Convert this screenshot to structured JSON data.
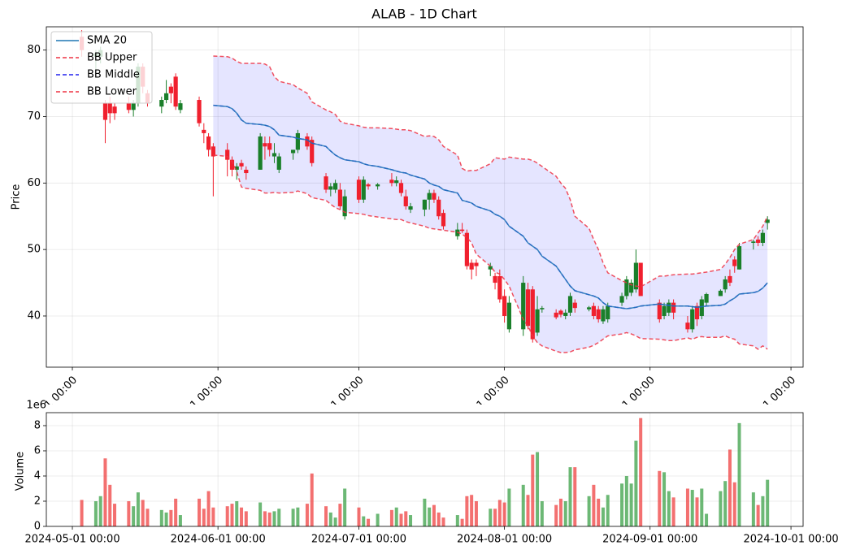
{
  "chart_data": [
    {
      "type": "candlestick",
      "title": "ALAB - 1D Chart",
      "y_label": "Price",
      "x": [
        "2024-05-03",
        "2024-05-06",
        "2024-05-07",
        "2024-05-08",
        "2024-05-09",
        "2024-05-10",
        "2024-05-13",
        "2024-05-14",
        "2024-05-15",
        "2024-05-16",
        "2024-05-17",
        "2024-05-20",
        "2024-05-21",
        "2024-05-22",
        "2024-05-23",
        "2024-05-24",
        "2024-05-28",
        "2024-05-29",
        "2024-05-30",
        "2024-05-31",
        "2024-06-03",
        "2024-06-04",
        "2024-06-05",
        "2024-06-06",
        "2024-06-07",
        "2024-06-10",
        "2024-06-11",
        "2024-06-12",
        "2024-06-13",
        "2024-06-14",
        "2024-06-17",
        "2024-06-18",
        "2024-06-20",
        "2024-06-21",
        "2024-06-24",
        "2024-06-25",
        "2024-06-26",
        "2024-06-27",
        "2024-06-28",
        "2024-07-01",
        "2024-07-02",
        "2024-07-03",
        "2024-07-05",
        "2024-07-08",
        "2024-07-09",
        "2024-07-10",
        "2024-07-11",
        "2024-07-12",
        "2024-07-15",
        "2024-07-16",
        "2024-07-17",
        "2024-07-18",
        "2024-07-19",
        "2024-07-22",
        "2024-07-23",
        "2024-07-24",
        "2024-07-25",
        "2024-07-26",
        "2024-07-29",
        "2024-07-30",
        "2024-07-31",
        "2024-08-01",
        "2024-08-02",
        "2024-08-05",
        "2024-08-06",
        "2024-08-07",
        "2024-08-08",
        "2024-08-09",
        "2024-08-12",
        "2024-08-13",
        "2024-08-14",
        "2024-08-15",
        "2024-08-16",
        "2024-08-19",
        "2024-08-20",
        "2024-08-21",
        "2024-08-22",
        "2024-08-23",
        "2024-08-26",
        "2024-08-27",
        "2024-08-28",
        "2024-08-29",
        "2024-08-30",
        "2024-09-03",
        "2024-09-04",
        "2024-09-05",
        "2024-09-06",
        "2024-09-09",
        "2024-09-10",
        "2024-09-11",
        "2024-09-12",
        "2024-09-13",
        "2024-09-16",
        "2024-09-17",
        "2024-09-18",
        "2024-09-19",
        "2024-09-20",
        "2024-09-23",
        "2024-09-24",
        "2024-09-25",
        "2024-09-26"
      ],
      "open": [
        82,
        79,
        79,
        72,
        72,
        71.5,
        72,
        71,
        72,
        77.5,
        73.5,
        71.5,
        72.5,
        74.5,
        76,
        71,
        72.5,
        68,
        67,
        65.5,
        65,
        63.5,
        62,
        63,
        62,
        62,
        66,
        66,
        64,
        62,
        64.5,
        65,
        67,
        66.5,
        61,
        59,
        59,
        59,
        55,
        60.5,
        57.5,
        59.8,
        59.5,
        60.5,
        60,
        60,
        58,
        56,
        56,
        57.5,
        58.5,
        57.5,
        55.5,
        52,
        53,
        52.5,
        48,
        48,
        47,
        46,
        46,
        43,
        38,
        38,
        44,
        44,
        37.5,
        41,
        40.5,
        40.8,
        40,
        40.5,
        42,
        41,
        41.5,
        41,
        39.2,
        39.5,
        42,
        43,
        43.5,
        44,
        48,
        42,
        40,
        40.5,
        42,
        39,
        38,
        41.5,
        40,
        42,
        43,
        44,
        46,
        48.5,
        47,
        51,
        51.5,
        51,
        54
      ],
      "high": [
        83,
        80,
        80.5,
        72.5,
        73,
        72,
        73,
        72.5,
        78,
        78,
        74,
        73,
        75.5,
        75,
        76.5,
        72.5,
        73,
        69,
        67.5,
        66,
        66,
        64,
        63,
        63.5,
        62.5,
        67.5,
        67,
        67,
        66,
        64.5,
        65,
        68,
        67.5,
        67,
        61.5,
        60,
        60.5,
        60,
        59,
        61,
        61,
        60,
        60,
        61.5,
        61,
        60.5,
        59,
        57,
        57.5,
        59,
        59,
        58,
        56,
        54,
        54,
        53,
        48.5,
        48.5,
        48,
        46.5,
        47,
        44,
        43,
        46,
        45,
        44.5,
        43,
        41.5,
        41,
        41,
        41,
        43.5,
        42.5,
        41.5,
        42,
        41.5,
        41.5,
        42,
        43.5,
        46,
        45.5,
        50,
        48,
        42.5,
        42,
        42.5,
        42.5,
        40,
        41.5,
        42,
        43,
        43.5,
        44,
        46,
        47,
        49,
        51,
        51.5,
        52,
        53,
        55
      ],
      "low": [
        79,
        77,
        78,
        66,
        69,
        69.5,
        70.5,
        70,
        71.5,
        73.5,
        71.5,
        70.5,
        72,
        72,
        71,
        70.5,
        68.5,
        66,
        64,
        58,
        61,
        61,
        60.5,
        62,
        60.5,
        62,
        63.5,
        64,
        63,
        61.5,
        63.5,
        64.5,
        65,
        62.5,
        58.5,
        58,
        58.5,
        56,
        54.5,
        57,
        57,
        59,
        59,
        59.5,
        59.5,
        58,
        56,
        55.5,
        55,
        56,
        57,
        54.5,
        53,
        51.5,
        52.5,
        47,
        45.5,
        46,
        46,
        44,
        42,
        39,
        37.5,
        37,
        38,
        36,
        37,
        40.5,
        39.5,
        39.8,
        39.5,
        40,
        40.5,
        40.7,
        39.5,
        39,
        38.8,
        39,
        41.5,
        42.5,
        43,
        43.5,
        43,
        39,
        39.5,
        40,
        39.5,
        37.5,
        37.5,
        38.5,
        39.5,
        41.5,
        43,
        43.5,
        44.5,
        46.5,
        47,
        50,
        50.5,
        50.5,
        53
      ],
      "close": [
        80,
        79.5,
        80,
        69.5,
        70.5,
        70.5,
        71,
        72,
        77.5,
        74.5,
        72,
        72.5,
        73.5,
        73.5,
        71.5,
        72,
        69,
        67.5,
        65,
        64,
        63.5,
        62,
        62.5,
        62.5,
        61.5,
        67,
        65.5,
        65,
        64.5,
        64,
        65,
        67.5,
        65.5,
        63,
        59,
        59.5,
        60,
        56.5,
        58,
        57.5,
        60.5,
        59.5,
        59.8,
        60,
        60.4,
        58.5,
        56.5,
        56.5,
        57.5,
        58.5,
        57.5,
        55,
        53.5,
        53,
        52.8,
        47.5,
        47,
        47.5,
        47.5,
        45,
        42.5,
        40,
        42,
        45,
        38.5,
        36.5,
        41,
        41.2,
        39.8,
        40.2,
        40.5,
        43,
        41.2,
        41.3,
        40,
        39.5,
        41,
        41.5,
        43,
        45.5,
        45,
        48,
        43,
        39.5,
        41.5,
        42,
        40.5,
        38,
        41,
        39.5,
        42.5,
        43.3,
        43.8,
        45.5,
        45,
        47.5,
        50.5,
        51.2,
        51,
        52.5,
        54.5
      ],
      "up_color": "#1a7f2a",
      "down_color": "#f0202e",
      "series": [
        {
          "name": "SMA 20",
          "color": "#1f77b4",
          "linestyle": "-",
          "values": [
            null,
            null,
            null,
            null,
            null,
            null,
            null,
            null,
            null,
            null,
            null,
            null,
            null,
            null,
            null,
            null,
            null,
            null,
            null,
            71.7,
            71.5,
            71.2,
            70.5,
            69.5,
            69.0,
            68.8,
            68.7,
            68.5,
            68.0,
            67.2,
            66.9,
            66.7,
            66.5,
            66.0,
            65.5,
            64.8,
            64.2,
            63.8,
            63.5,
            63.2,
            62.9,
            62.7,
            62.5,
            62.0,
            61.8,
            61.6,
            61.5,
            61.2,
            60.6,
            60.0,
            59.7,
            59.5,
            59.0,
            58.5,
            57.4,
            57.2,
            57.0,
            56.5,
            55.8,
            55.3,
            55.0,
            54.5,
            53.5,
            52.0,
            51.0,
            50.5,
            50.0,
            49.0,
            47.5,
            46.5,
            45.5,
            44.5,
            43.8,
            43.2,
            43.0,
            42.7,
            42.0,
            41.5,
            41.2,
            41.1,
            41.2,
            41.3,
            41.5,
            41.8,
            41.7,
            41.6,
            41.5,
            41.5,
            41.4,
            41.3,
            41.4,
            41.5,
            41.6,
            41.8,
            42.3,
            42.7,
            43.3,
            43.5,
            43.7,
            44.2,
            45.0
          ]
        },
        {
          "name": "BB Upper",
          "color": "#ee3344",
          "linestyle": "--",
          "values": [
            null,
            null,
            null,
            null,
            null,
            null,
            null,
            null,
            null,
            null,
            null,
            null,
            null,
            null,
            null,
            null,
            null,
            null,
            null,
            79.1,
            79.0,
            78.8,
            78.3,
            78.0,
            78.0,
            78.0,
            77.9,
            77.5,
            76.0,
            75.3,
            74.8,
            74.3,
            73.5,
            72.2,
            71.0,
            70.7,
            70.3,
            69.3,
            69.0,
            68.6,
            68.4,
            68.3,
            68.3,
            68.2,
            68.1,
            68.0,
            68.0,
            67.9,
            67.0,
            67.1,
            67.0,
            66.5,
            65.5,
            64.2,
            62.2,
            61.8,
            61.9,
            61.9,
            62.9,
            63.8,
            63.7,
            63.6,
            63.9,
            63.6,
            63.6,
            63.4,
            63.0,
            62.5,
            61.0,
            60.0,
            59.2,
            57.5,
            55.0,
            53.2,
            51.5,
            50.0,
            48.0,
            46.5,
            45.3,
            45.0,
            44.7,
            44.5,
            44.4,
            46.0,
            46.0,
            46.1,
            46.2,
            46.3,
            46.3,
            46.4,
            46.5,
            46.6,
            47.0,
            47.8,
            48.8,
            50.0,
            50.8,
            51.5,
            52.5,
            53.5,
            55.0
          ]
        },
        {
          "name": "BB Middle",
          "color": "#2222ee",
          "linestyle": "--",
          "values": [
            null,
            null,
            null,
            null,
            null,
            null,
            null,
            null,
            null,
            null,
            null,
            null,
            null,
            null,
            null,
            null,
            null,
            null,
            null,
            71.7,
            71.5,
            71.2,
            70.5,
            69.5,
            69.0,
            68.8,
            68.7,
            68.5,
            68.0,
            67.2,
            66.9,
            66.7,
            66.5,
            66.0,
            65.5,
            64.8,
            64.2,
            63.8,
            63.5,
            63.2,
            62.9,
            62.7,
            62.5,
            62.0,
            61.8,
            61.6,
            61.5,
            61.2,
            60.6,
            60.0,
            59.7,
            59.5,
            59.0,
            58.5,
            57.4,
            57.2,
            57.0,
            56.5,
            55.8,
            55.3,
            55.0,
            54.5,
            53.5,
            52.0,
            51.0,
            50.5,
            50.0,
            49.0,
            47.5,
            46.5,
            45.5,
            44.5,
            43.8,
            43.2,
            43.0,
            42.7,
            42.0,
            41.5,
            41.2,
            41.1,
            41.2,
            41.3,
            41.5,
            41.8,
            41.7,
            41.6,
            41.5,
            41.5,
            41.4,
            41.3,
            41.4,
            41.5,
            41.6,
            41.8,
            42.3,
            42.7,
            43.3,
            43.5,
            43.7,
            44.2,
            45.0
          ]
        },
        {
          "name": "BB Lower",
          "color": "#ee3344",
          "linestyle": "--",
          "values": [
            null,
            null,
            null,
            null,
            null,
            null,
            null,
            null,
            null,
            null,
            null,
            null,
            null,
            null,
            null,
            null,
            null,
            null,
            null,
            64.2,
            64.0,
            63.2,
            61.7,
            59.4,
            59.2,
            58.9,
            58.5,
            58.5,
            58.6,
            58.5,
            58.6,
            58.8,
            58.4,
            57.8,
            57.4,
            56.8,
            56.3,
            56.0,
            55.6,
            55.4,
            55.3,
            55.1,
            54.9,
            54.6,
            54.5,
            54.5,
            54.2,
            54.0,
            53.5,
            53.2,
            53.1,
            53.0,
            52.9,
            52.6,
            52.3,
            51.8,
            51.0,
            49.3,
            47.5,
            46.6,
            46.3,
            45.5,
            44.5,
            39.5,
            38.5,
            37.0,
            36.0,
            35.5,
            34.7,
            34.5,
            34.5,
            34.6,
            34.9,
            35.3,
            35.6,
            36.0,
            36.5,
            37.0,
            37.3,
            37.5,
            37.3,
            37.0,
            36.6,
            36.5,
            36.4,
            36.3,
            36.3,
            36.7,
            36.5,
            36.8,
            36.9,
            36.8,
            36.8,
            37.0,
            36.7,
            36.5,
            35.8,
            35.5,
            35.0,
            35.5,
            35.0
          ]
        }
      ],
      "band_color": "#0000ff",
      "band_opacity": 0.1,
      "xlim": [
        "2024-04-25T11:00",
        "2024-10-03T14:00"
      ],
      "xticks": [
        {
          "value": "2024-05-01",
          "label": "2024-05-01 00:00"
        },
        {
          "value": "2024-06-01",
          "label": "2024-06-01 00:00"
        },
        {
          "value": "2024-07-01",
          "label": "2024-07-01 00:00"
        },
        {
          "value": "2024-08-01",
          "label": "2024-08-01 00:00"
        },
        {
          "value": "2024-09-01",
          "label": "2024-09-01 00:00"
        },
        {
          "value": "2024-10-01",
          "label": "2024-10-01 00:00"
        }
      ],
      "ylim": [
        32.3,
        83.5
      ],
      "yticks": [
        40,
        50,
        60,
        70,
        80
      ],
      "grid": true,
      "legend": "upper left"
    },
    {
      "type": "bar",
      "y_label": "Volume",
      "offset_label": "1e6",
      "values": [
        2100000,
        2000000,
        2400000,
        5400000,
        3300000,
        1800000,
        2000000,
        1600000,
        2700000,
        2100000,
        1400000,
        1300000,
        1100000,
        1300000,
        2200000,
        900000,
        2200000,
        1400000,
        2800000,
        1500000,
        1600000,
        1800000,
        2000000,
        1500000,
        1200000,
        1900000,
        1200000,
        1100000,
        1200000,
        1400000,
        1400000,
        1500000,
        1800000,
        4200000,
        1600000,
        1100000,
        700000,
        1800000,
        3000000,
        1500000,
        800000,
        600000,
        1000000,
        1300000,
        1500000,
        1000000,
        1200000,
        900000,
        2200000,
        1500000,
        1700000,
        1100000,
        700000,
        900000,
        600000,
        2400000,
        2500000,
        2000000,
        1400000,
        1400000,
        2100000,
        1900000,
        3000000,
        3300000,
        2500000,
        5700000,
        5900000,
        2000000,
        1700000,
        2200000,
        2000000,
        4700000,
        4700000,
        2400000,
        3300000,
        2200000,
        1500000,
        2500000,
        3400000,
        4000000,
        3400000,
        6800000,
        8600000,
        4400000,
        4300000,
        2800000,
        2300000,
        3000000,
        2900000,
        2300000,
        3000000,
        1000000,
        2800000,
        3600000,
        6100000,
        3500000,
        8200000,
        2700000,
        1700000,
        2400000,
        3700000
      ],
      "up_color": "#2e9a3a",
      "down_color": "#ee3333",
      "opacity": 0.7,
      "ylim": [
        0,
        9030000
      ],
      "yticks": [
        0,
        {
          "value": 2000000,
          "label": "2"
        },
        {
          "value": 4000000,
          "label": "4"
        },
        {
          "value": 6000000,
          "label": "6"
        },
        {
          "value": 8000000,
          "label": "8"
        }
      ],
      "grid": true
    }
  ]
}
